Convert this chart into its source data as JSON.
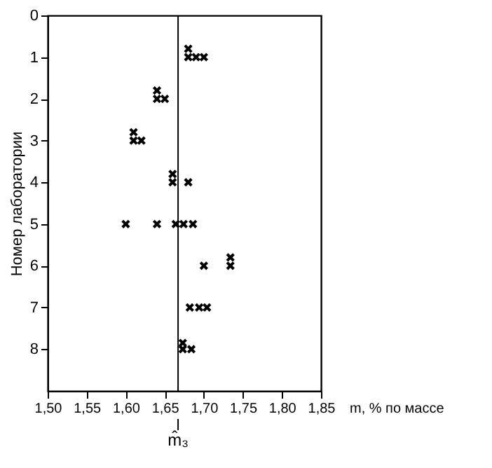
{
  "chart_data": {
    "type": "scatter",
    "xlabel": "m, % по массе",
    "ylabel": "Номер лаборатории",
    "x": [
      1.68,
      1.68,
      1.69,
      1.7,
      1.64,
      1.64,
      1.65,
      1.61,
      1.61,
      1.62,
      1.66,
      1.66,
      1.68,
      1.6,
      1.64,
      1.664,
      1.674,
      1.686,
      1.7,
      1.734,
      1.734,
      1.682,
      1.694,
      1.704,
      1.673,
      1.673,
      1.684
    ],
    "series": [
      {
        "color": "#000000",
        "values": [
          0.8,
          1,
          1,
          1,
          1.8,
          2,
          2,
          2.8,
          3,
          3,
          3.8,
          4,
          4,
          5,
          5,
          5,
          5,
          5,
          6,
          5.8,
          6,
          7,
          7,
          7,
          7.85,
          8,
          8
        ]
      }
    ],
    "xlim": [
      1.5,
      1.85
    ],
    "xticks": [
      {
        "value": 1.5,
        "label": "1,50"
      },
      {
        "value": 1.55,
        "label": "1,55"
      },
      {
        "value": 1.6,
        "label": "1,60"
      },
      {
        "value": 1.65,
        "label": "1,65"
      },
      {
        "value": 1.7,
        "label": "1,70"
      },
      {
        "value": 1.75,
        "label": "1,75"
      },
      {
        "value": 1.8,
        "label": "1,80"
      },
      {
        "value": 1.85,
        "label": "1,85"
      }
    ],
    "ylim": [
      9,
      0
    ],
    "yticks": [
      0,
      1,
      2,
      3,
      4,
      5,
      6,
      7,
      8
    ],
    "ref_lines": [
      {
        "axis": "x",
        "value": 1.667,
        "label": "m̂₃",
        "color": "#000000"
      }
    ],
    "marker": "cross",
    "grid": false
  }
}
